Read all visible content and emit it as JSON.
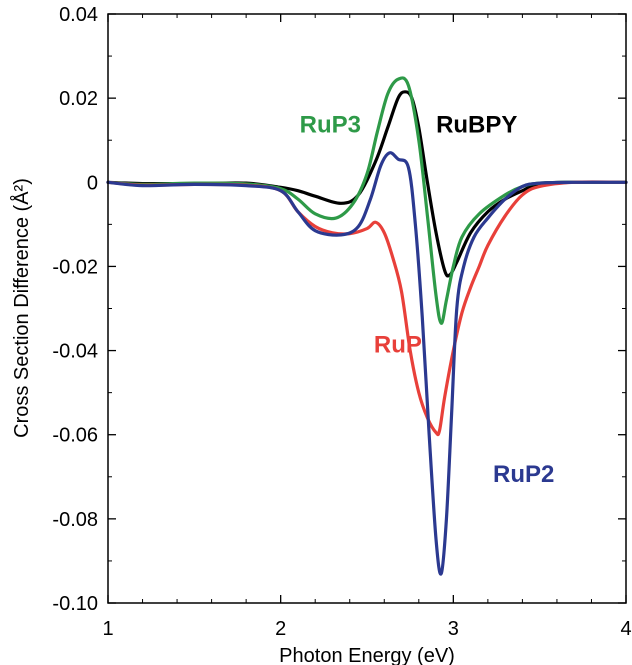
{
  "chart_data": {
    "type": "line",
    "xlabel": "Photon Energy (eV)",
    "ylabel": "Cross Section Difference (Å²)",
    "xlim": [
      1,
      4
    ],
    "ylim": [
      -0.1,
      0.04
    ],
    "x_ticks": [
      1,
      2,
      3,
      4
    ],
    "x_tick_labels": [
      "1",
      "2",
      "3",
      "4"
    ],
    "y_ticks": [
      0.04,
      0.02,
      0,
      -0.02,
      -0.04,
      -0.06,
      -0.08,
      -0.1
    ],
    "y_tick_labels": [
      "0.04",
      "0.02",
      "0",
      "-0.02",
      "-0.04",
      "-0.06",
      "-0.08",
      "-0.10"
    ],
    "grid": false,
    "series": [
      {
        "name": "RuBPY",
        "color": "#000000",
        "points": [
          [
            1.0,
            0.0
          ],
          [
            1.2,
            -0.0003
          ],
          [
            1.5,
            -0.0003
          ],
          [
            1.8,
            -0.0002
          ],
          [
            2.0,
            -0.0012
          ],
          [
            2.1,
            -0.002
          ],
          [
            2.2,
            -0.0033
          ],
          [
            2.35,
            -0.005
          ],
          [
            2.45,
            -0.003
          ],
          [
            2.55,
            0.005
          ],
          [
            2.62,
            0.013
          ],
          [
            2.68,
            0.02
          ],
          [
            2.72,
            0.0215
          ],
          [
            2.76,
            0.02
          ],
          [
            2.8,
            0.013
          ],
          [
            2.85,
            0.0
          ],
          [
            2.9,
            -0.012
          ],
          [
            2.95,
            -0.021
          ],
          [
            2.98,
            -0.022
          ],
          [
            3.02,
            -0.019
          ],
          [
            3.1,
            -0.012
          ],
          [
            3.2,
            -0.007
          ],
          [
            3.3,
            -0.004
          ],
          [
            3.4,
            -0.002
          ],
          [
            3.5,
            -0.0003
          ],
          [
            3.7,
            0.0
          ],
          [
            4.0,
            0.0
          ]
        ]
      },
      {
        "name": "RuP3",
        "color": "#2e9a48",
        "points": [
          [
            1.0,
            0.0
          ],
          [
            1.2,
            -0.0005
          ],
          [
            1.5,
            -0.0002
          ],
          [
            1.8,
            -0.0004
          ],
          [
            2.0,
            -0.0015
          ],
          [
            2.1,
            -0.004
          ],
          [
            2.2,
            -0.0075
          ],
          [
            2.32,
            -0.0085
          ],
          [
            2.42,
            -0.005
          ],
          [
            2.5,
            0.002
          ],
          [
            2.56,
            0.012
          ],
          [
            2.62,
            0.021
          ],
          [
            2.68,
            0.0245
          ],
          [
            2.74,
            0.023
          ],
          [
            2.8,
            0.01
          ],
          [
            2.85,
            -0.008
          ],
          [
            2.9,
            -0.027
          ],
          [
            2.93,
            -0.0335
          ],
          [
            2.96,
            -0.028
          ],
          [
            3.0,
            -0.02
          ],
          [
            3.05,
            -0.013
          ],
          [
            3.15,
            -0.0075
          ],
          [
            3.3,
            -0.003
          ],
          [
            3.4,
            -0.001
          ],
          [
            3.5,
            -0.0002
          ],
          [
            3.7,
            0.0
          ],
          [
            4.0,
            0.0
          ]
        ]
      },
      {
        "name": "RuP",
        "color": "#e8403a",
        "points": [
          [
            1.0,
            0.0
          ],
          [
            1.2,
            -0.0007
          ],
          [
            1.5,
            -0.0005
          ],
          [
            1.8,
            -0.0007
          ],
          [
            2.0,
            -0.002
          ],
          [
            2.1,
            -0.007
          ],
          [
            2.2,
            -0.0105
          ],
          [
            2.3,
            -0.012
          ],
          [
            2.4,
            -0.0122
          ],
          [
            2.5,
            -0.011
          ],
          [
            2.55,
            -0.0095
          ],
          [
            2.6,
            -0.012
          ],
          [
            2.65,
            -0.018
          ],
          [
            2.7,
            -0.026
          ],
          [
            2.75,
            -0.04
          ],
          [
            2.8,
            -0.05
          ],
          [
            2.85,
            -0.056
          ],
          [
            2.9,
            -0.0595
          ],
          [
            2.92,
            -0.059
          ],
          [
            2.95,
            -0.051
          ],
          [
            3.0,
            -0.04
          ],
          [
            3.05,
            -0.031
          ],
          [
            3.1,
            -0.025
          ],
          [
            3.15,
            -0.02
          ],
          [
            3.2,
            -0.015
          ],
          [
            3.3,
            -0.008
          ],
          [
            3.4,
            -0.003
          ],
          [
            3.5,
            -0.001
          ],
          [
            3.7,
            0.0
          ],
          [
            4.0,
            0.0
          ]
        ]
      },
      {
        "name": "RuP2",
        "color": "#2b3990",
        "points": [
          [
            1.0,
            0.0
          ],
          [
            1.2,
            -0.0008
          ],
          [
            1.5,
            -0.0005
          ],
          [
            1.8,
            -0.0008
          ],
          [
            2.0,
            -0.002
          ],
          [
            2.1,
            -0.007
          ],
          [
            2.2,
            -0.0115
          ],
          [
            2.35,
            -0.0125
          ],
          [
            2.45,
            -0.0105
          ],
          [
            2.52,
            -0.004
          ],
          [
            2.58,
            0.004
          ],
          [
            2.63,
            0.007
          ],
          [
            2.68,
            0.0055
          ],
          [
            2.74,
            0.0035
          ],
          [
            2.78,
            -0.01
          ],
          [
            2.82,
            -0.032
          ],
          [
            2.86,
            -0.06
          ],
          [
            2.9,
            -0.085
          ],
          [
            2.93,
            -0.093
          ],
          [
            2.96,
            -0.08
          ],
          [
            2.99,
            -0.055
          ],
          [
            3.02,
            -0.03
          ],
          [
            3.06,
            -0.02
          ],
          [
            3.12,
            -0.013
          ],
          [
            3.2,
            -0.0085
          ],
          [
            3.3,
            -0.004
          ],
          [
            3.4,
            -0.001
          ],
          [
            3.5,
            -0.0002
          ],
          [
            3.7,
            0.0
          ],
          [
            4.0,
            0.0
          ]
        ]
      }
    ],
    "annotations": [
      {
        "text": "RuP3",
        "series": "RuP3",
        "x": 2.11,
        "y": 0.0118
      },
      {
        "text": "RuBPY",
        "series": "RuBPY",
        "x": 2.9,
        "y": 0.0118
      },
      {
        "text": "RuP",
        "series": "RuP",
        "x": 2.54,
        "y": -0.0405
      },
      {
        "text": "RuP2",
        "series": "RuP2",
        "x": 3.23,
        "y": -0.0712
      }
    ]
  }
}
